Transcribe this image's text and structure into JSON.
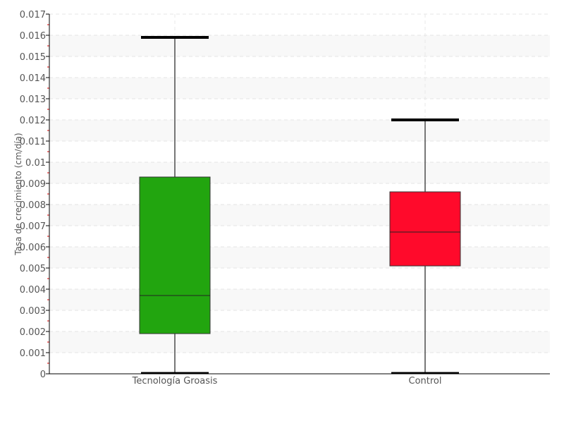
{
  "chart_data": {
    "type": "box",
    "title": "",
    "xlabel": "",
    "ylabel": "Tasa de crecimiento (cm/día)",
    "ylim": [
      0,
      0.017
    ],
    "ytick_step": 0.001,
    "yticks": [
      "0",
      "0.001",
      "0.002",
      "0.003",
      "0.004",
      "0.005",
      "0.006",
      "0.007",
      "0.008",
      "0.009",
      "0.01",
      "0.011",
      "0.012",
      "0.013",
      "0.014",
      "0.015",
      "0.016",
      "0.017"
    ],
    "grid": true,
    "categories": [
      "Tecnología Groasis",
      "Control"
    ],
    "boxes": [
      {
        "category": "Tecnología Groasis",
        "min": 0.0,
        "q1": 0.0019,
        "median": 0.0037,
        "q3": 0.0093,
        "max": 0.0159,
        "color": "#22a50f"
      },
      {
        "category": "Control",
        "min": 0.0,
        "q1": 0.0051,
        "median": 0.0067,
        "q3": 0.0086,
        "max": 0.012,
        "color": "#ff0a2b"
      }
    ]
  }
}
